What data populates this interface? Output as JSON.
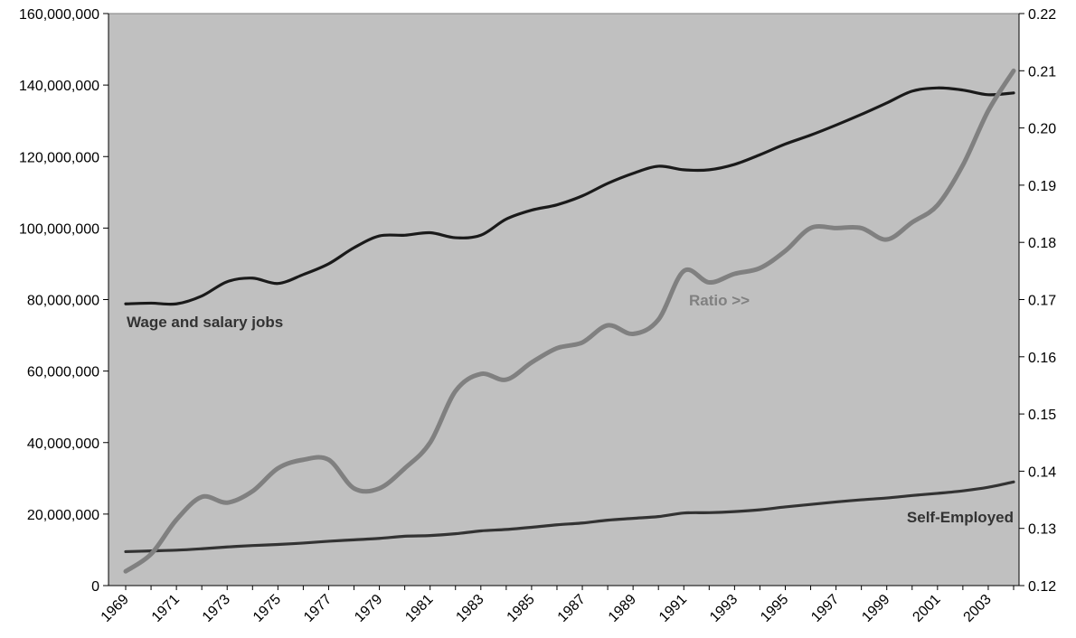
{
  "chart_data": {
    "type": "line",
    "title": "",
    "xlabel": "",
    "ylabel": "",
    "y2label": "",
    "x": [
      1969,
      1970,
      1971,
      1972,
      1973,
      1974,
      1975,
      1976,
      1977,
      1978,
      1979,
      1980,
      1981,
      1982,
      1983,
      1984,
      1985,
      1986,
      1987,
      1988,
      1989,
      1990,
      1991,
      1992,
      1993,
      1994,
      1995,
      1996,
      1997,
      1998,
      1999,
      2000,
      2001,
      2002,
      2003,
      2004
    ],
    "x_tick_labels": [
      "1969",
      "1971",
      "1973",
      "1975",
      "1977",
      "1979",
      "1981",
      "1983",
      "1985",
      "1987",
      "1989",
      "1991",
      "1993",
      "1995",
      "1997",
      "1999",
      "2001",
      "2003"
    ],
    "ylim": [
      0,
      160000000
    ],
    "y_ticks": [
      0,
      20000000,
      40000000,
      60000000,
      80000000,
      100000000,
      120000000,
      140000000,
      160000000
    ],
    "y_tick_labels": [
      "0",
      "20,000,000",
      "40,000,000",
      "60,000,000",
      "80,000,000",
      "100,000,000",
      "120,000,000",
      "140,000,000",
      "160,000,000"
    ],
    "y2lim": [
      0.12,
      0.22
    ],
    "y2_ticks": [
      0.12,
      0.13,
      0.14,
      0.15,
      0.16,
      0.17,
      0.18,
      0.19,
      0.2,
      0.21,
      0.22
    ],
    "y2_tick_labels": [
      "0.12",
      "0.13",
      "0.14",
      "0.15",
      "0.16",
      "0.17",
      "0.18",
      "0.19",
      "0.20",
      "0.21",
      "0.22"
    ],
    "grid": false,
    "legend": "none",
    "series": [
      {
        "name": "Wage and salary jobs",
        "axis": "left",
        "color": "#1a1a1a",
        "values": [
          78800000,
          79000000,
          78800000,
          81000000,
          85000000,
          86000000,
          84500000,
          87000000,
          90000000,
          94500000,
          97800000,
          98000000,
          98700000,
          97300000,
          98000000,
          102500000,
          105000000,
          106500000,
          109000000,
          112500000,
          115300000,
          117300000,
          116300000,
          116300000,
          117800000,
          120500000,
          123500000,
          126000000,
          128800000,
          131800000,
          135000000,
          138300000,
          139200000,
          138600000,
          137300000,
          137800000
        ]
      },
      {
        "name": "Self-Employed",
        "axis": "left",
        "color": "#333333",
        "values": [
          9500000,
          9700000,
          9900000,
          10300000,
          10800000,
          11200000,
          11500000,
          11900000,
          12400000,
          12800000,
          13200000,
          13800000,
          14000000,
          14500000,
          15300000,
          15700000,
          16300000,
          17000000,
          17500000,
          18300000,
          18800000,
          19300000,
          20300000,
          20400000,
          20700000,
          21200000,
          22000000,
          22700000,
          23400000,
          24000000,
          24500000,
          25200000,
          25800000,
          26500000,
          27500000,
          29000000
        ]
      },
      {
        "name": "Ratio >>",
        "axis": "right",
        "color": "#808080",
        "values": [
          0.1225,
          0.1255,
          0.1315,
          0.1355,
          0.1345,
          0.1365,
          0.1405,
          0.142,
          0.142,
          0.137,
          0.137,
          0.1405,
          0.145,
          0.154,
          0.157,
          0.156,
          0.159,
          0.1615,
          0.1625,
          0.1655,
          0.164,
          0.1665,
          0.175,
          0.173,
          0.1745,
          0.1755,
          0.1785,
          0.1825,
          0.1825,
          0.1825,
          0.1805,
          0.1835,
          0.1865,
          0.1935,
          0.203,
          0.21
        ]
      }
    ],
    "labels": {
      "wage": "Wage and salary jobs",
      "ratio": "Ratio >>",
      "self": "Self-Employed"
    }
  }
}
